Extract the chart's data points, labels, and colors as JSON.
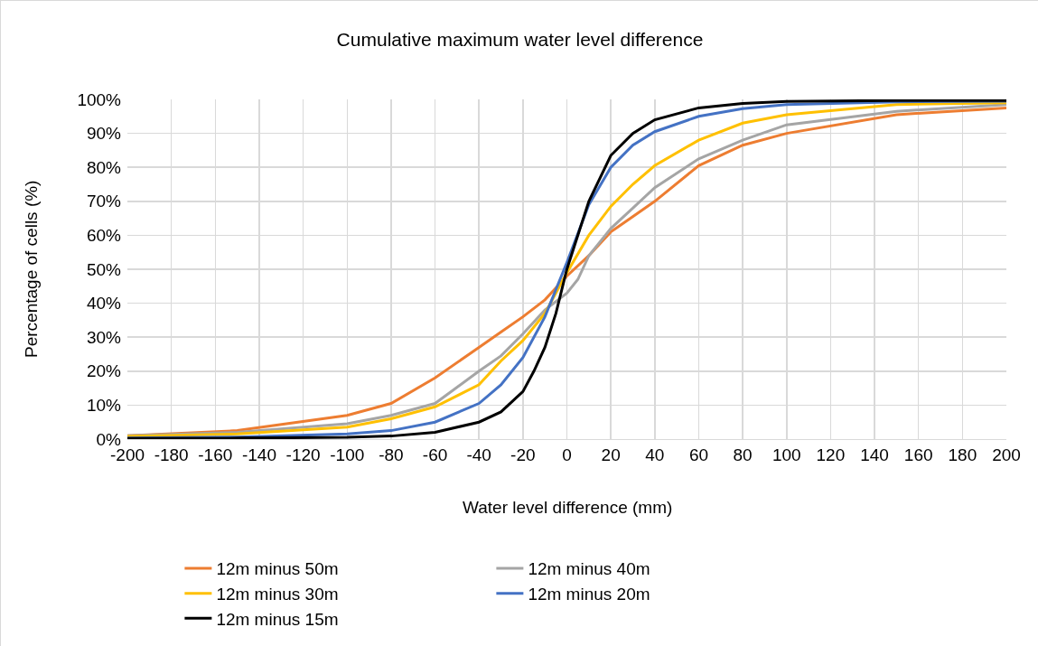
{
  "chart_data": {
    "type": "line",
    "title": "Cumulative maximum water level difference",
    "xlabel": "Water level difference (mm)",
    "ylabel": "Percentage of cells (%)",
    "xlim": [
      -200,
      200
    ],
    "xticks": [
      -200,
      -180,
      -160,
      -140,
      -120,
      -100,
      -80,
      -60,
      -40,
      -20,
      0,
      20,
      40,
      60,
      80,
      100,
      120,
      140,
      160,
      180,
      200
    ],
    "ylim": [
      0,
      100
    ],
    "yticks": [
      {
        "value": 0,
        "label": "0%"
      },
      {
        "value": 10,
        "label": "10%"
      },
      {
        "value": 20,
        "label": "20%"
      },
      {
        "value": 30,
        "label": "30%"
      },
      {
        "value": 40,
        "label": "40%"
      },
      {
        "value": 50,
        "label": "50%"
      },
      {
        "value": 60,
        "label": "60%"
      },
      {
        "value": 70,
        "label": "70%"
      },
      {
        "value": 80,
        "label": "80%"
      },
      {
        "value": 90,
        "label": "90%"
      },
      {
        "value": 100,
        "label": "100%"
      }
    ],
    "grid": true,
    "legend": "bottom",
    "marker": "none",
    "line_style": "solid",
    "series": [
      {
        "name": "12m minus 50m",
        "color": "#ed7d31",
        "x": [
          -200,
          -150,
          -100,
          -80,
          -60,
          -40,
          -30,
          -20,
          -10,
          0,
          10,
          20,
          30,
          40,
          60,
          80,
          100,
          150,
          200
        ],
        "values": [
          1,
          2.5,
          7,
          10.5,
          18,
          27,
          31.5,
          36,
          41,
          48,
          54,
          61,
          65.5,
          70,
          80.5,
          86.5,
          90,
          95.5,
          97.5
        ]
      },
      {
        "name": "12m minus 40m",
        "color": "#a5a5a5",
        "x": [
          -200,
          -150,
          -100,
          -80,
          -60,
          -40,
          -30,
          -20,
          -10,
          0,
          5,
          10,
          20,
          30,
          40,
          60,
          80,
          100,
          150,
          200
        ],
        "values": [
          1,
          2,
          4.5,
          7,
          10.5,
          20,
          24.5,
          31,
          38,
          43,
          47,
          54,
          62,
          68,
          74,
          82.5,
          88,
          92.5,
          96.5,
          98.5
        ]
      },
      {
        "name": "12m minus 30m",
        "color": "#ffc000",
        "x": [
          -200,
          -150,
          -100,
          -80,
          -60,
          -40,
          -30,
          -20,
          -10,
          0,
          10,
          20,
          30,
          40,
          60,
          80,
          100,
          150,
          200
        ],
        "values": [
          0.8,
          1.5,
          3.5,
          6,
          9.5,
          16,
          23,
          29,
          37,
          49,
          60,
          68.5,
          75,
          80.5,
          88,
          93,
          95.5,
          98.5,
          99
        ]
      },
      {
        "name": "12m minus 20m",
        "color": "#4472c4",
        "x": [
          -200,
          -150,
          -100,
          -80,
          -60,
          -40,
          -30,
          -20,
          -10,
          0,
          10,
          20,
          30,
          40,
          60,
          80,
          100,
          150,
          200
        ],
        "values": [
          0.3,
          0.6,
          1.5,
          2.5,
          5,
          10.5,
          16,
          24,
          36,
          52,
          69,
          80,
          86.5,
          90.5,
          95,
          97.3,
          98.5,
          99.3,
          99.5
        ]
      },
      {
        "name": "12m minus 15m",
        "color": "#000000",
        "x": [
          -200,
          -150,
          -100,
          -80,
          -60,
          -40,
          -30,
          -20,
          -15,
          -10,
          -5,
          0,
          10,
          20,
          30,
          40,
          60,
          80,
          100,
          150,
          200
        ],
        "values": [
          0.2,
          0.3,
          0.5,
          0.9,
          2,
          5,
          8,
          14,
          20,
          27,
          37,
          50,
          70,
          83.5,
          90,
          94,
          97.5,
          98.8,
          99.4,
          99.7,
          99.7
        ]
      }
    ]
  }
}
